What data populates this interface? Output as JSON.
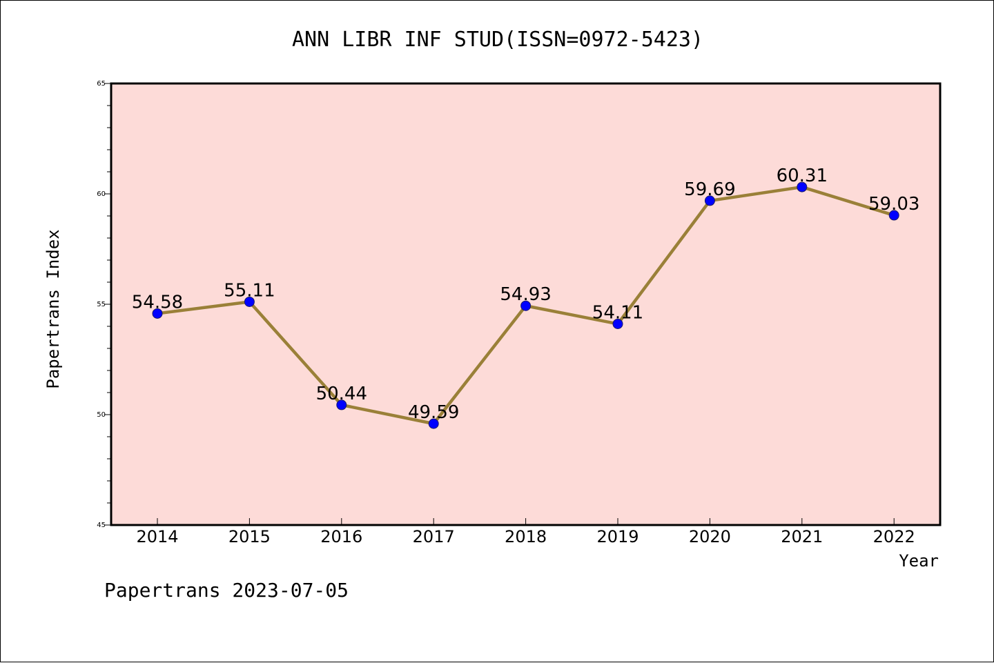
{
  "chart_data": {
    "type": "line",
    "title": "ANN LIBR INF STUD(ISSN=0972-5423)",
    "xlabel": "Year",
    "ylabel": "Papertrans Index",
    "categories": [
      "2014",
      "2015",
      "2016",
      "2017",
      "2018",
      "2019",
      "2020",
      "2021",
      "2022"
    ],
    "values": [
      54.58,
      55.11,
      50.44,
      49.59,
      54.93,
      54.11,
      59.69,
      60.31,
      59.03
    ],
    "data_labels": [
      "54.58",
      "55.11",
      "50.44",
      "49.59",
      "54.93",
      "54.11",
      "59.69",
      "60.31",
      "59.03"
    ],
    "ylim": [
      45,
      65
    ],
    "yticks": [
      "45",
      "50",
      "55",
      "60",
      "65"
    ],
    "grid": false,
    "colors": {
      "plot_background": "#fddbd8",
      "line": "#9a8038",
      "marker": "#0000ff",
      "marker_edge": "#1a1a6a"
    }
  },
  "footer": {
    "text": "Papertrans 2023-07-05"
  }
}
